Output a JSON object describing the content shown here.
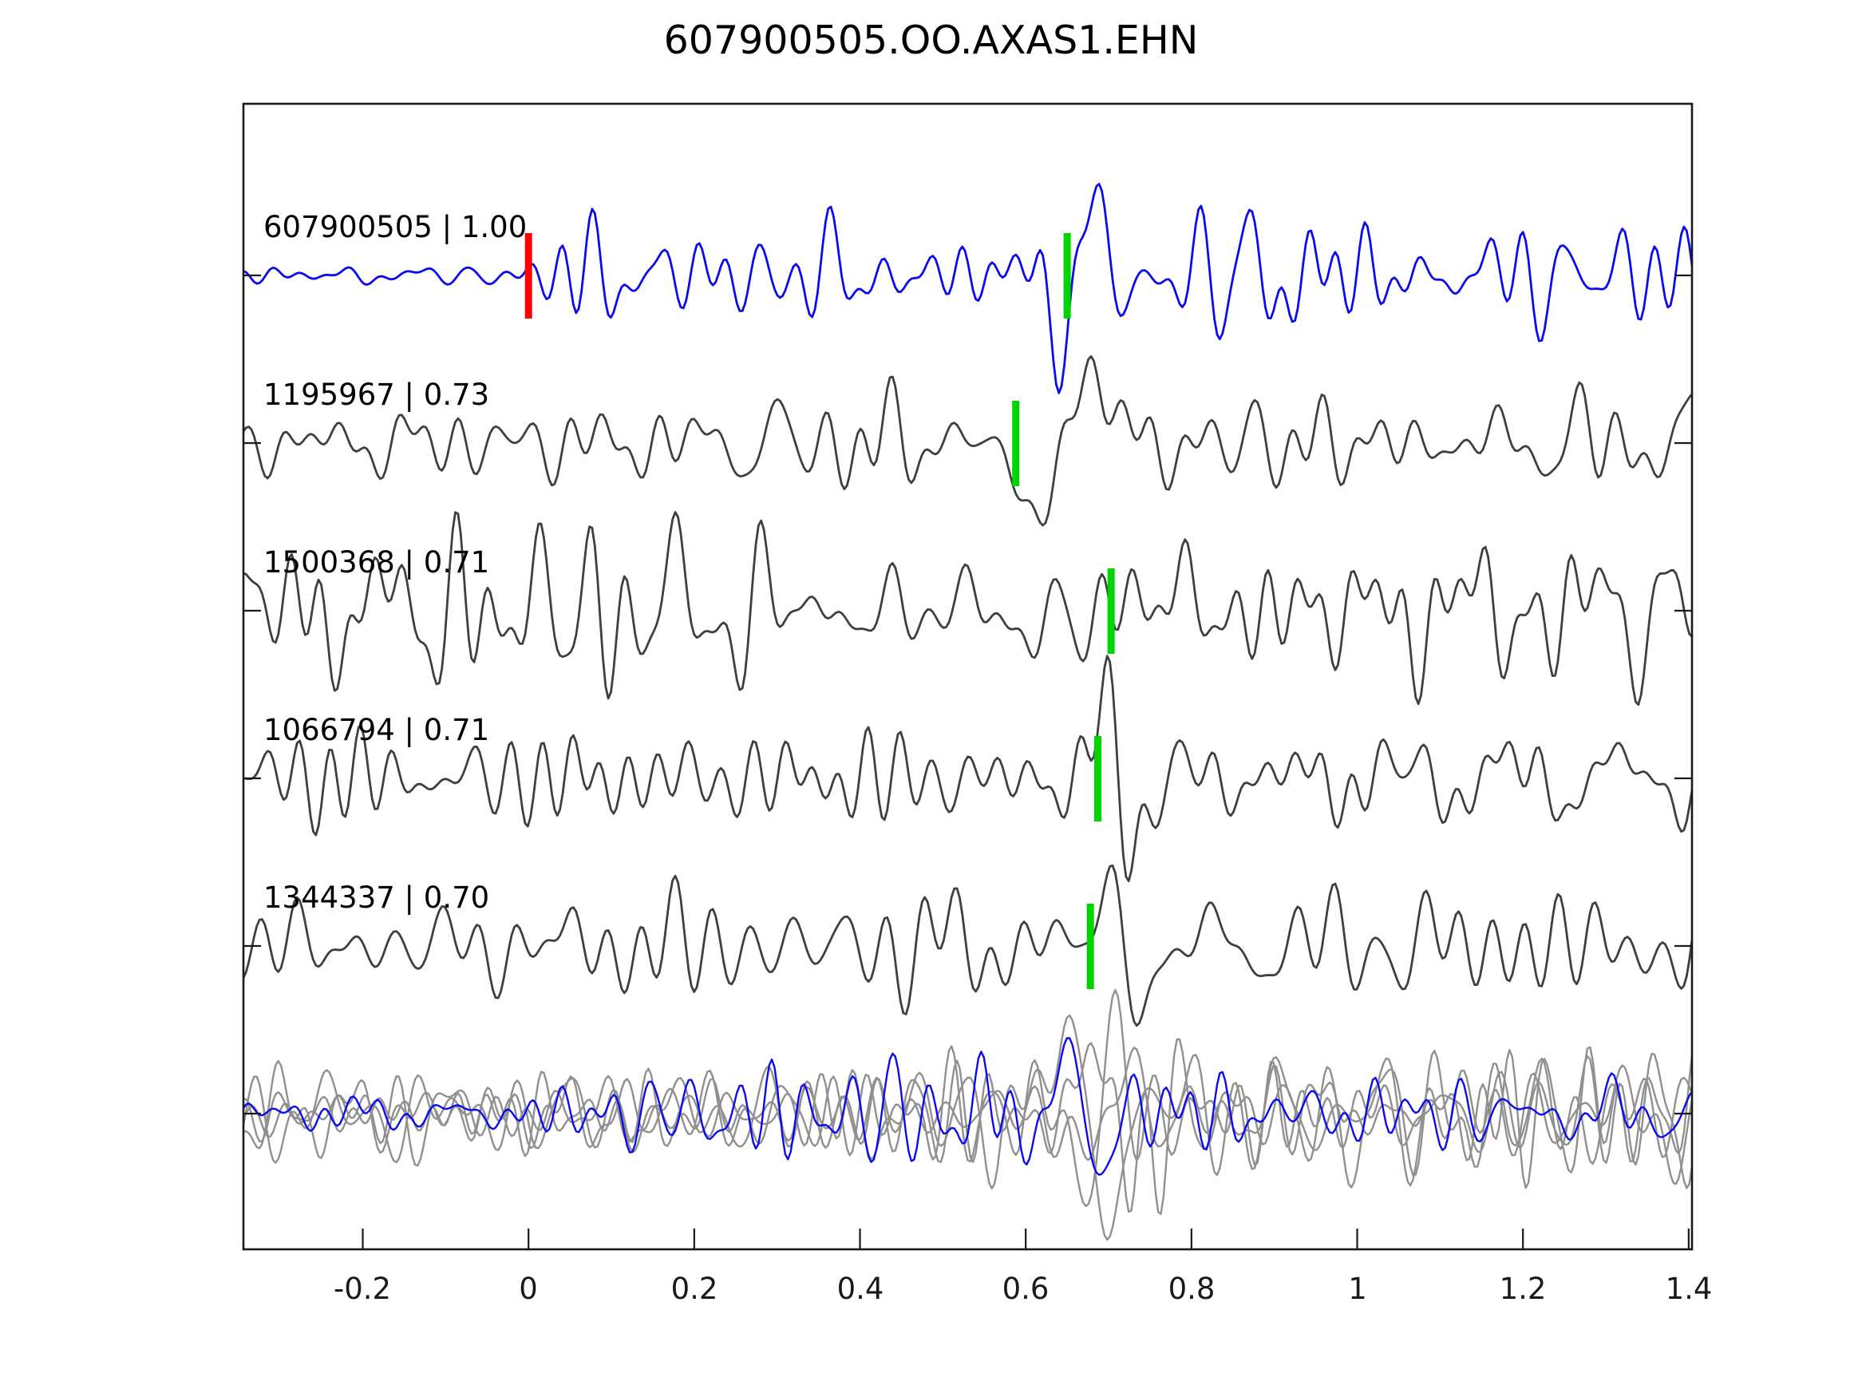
{
  "title": "607900505.OO.AXAS1.EHN",
  "colors": {
    "reference_trace": "#0b0bee",
    "match_trace": "#3f3f3f",
    "overlay_gray": "#909090",
    "pick_green": "#00d400",
    "pick_red": "#ff0000",
    "axis": "#1a1a1a",
    "background": "#ffffff"
  },
  "axes": {
    "xlim": [
      -0.344,
      1.404
    ],
    "xticks": [
      -0.2,
      0,
      0.2,
      0.4,
      0.6,
      0.8,
      1.0,
      1.2,
      1.4
    ],
    "xtick_labels": [
      "-0.2",
      "0",
      "0.2",
      "0.4",
      "0.6",
      "0.8",
      "1",
      "1.2",
      "1.4"
    ],
    "yticks_at_trace_centers": true,
    "grid": false
  },
  "chart_data": {
    "type": "line",
    "subtype": "seismic-waveform-correlation-stack",
    "title": "607900505.OO.AXAS1.EHN",
    "xlabel": "",
    "ylabel": "",
    "xlim": [
      -0.344,
      1.404
    ],
    "xticks": [
      -0.2,
      0,
      0.2,
      0.4,
      0.6,
      0.8,
      1.0,
      1.2,
      1.4
    ],
    "legend": "none",
    "n_rows": 6,
    "rows": [
      {
        "label": "607900505 | 1.00",
        "event_id": "607900505",
        "correlation": 1.0,
        "role": "reference",
        "color": "#0b0bee",
        "picks": [
          {
            "kind": "origin-pick",
            "color": "#ff0000",
            "x": 0.0
          },
          {
            "kind": "phase-pick",
            "color": "#00d400",
            "x": 0.65
          }
        ],
        "wave": {
          "seed": 7,
          "pre": 15,
          "post": 58,
          "t0": 0.025,
          "w0": 0.04,
          "burst_t": 0.93,
          "burst_h": 22,
          "burst_w": 0.28,
          "wt": 0.666,
          "wp": 0.084,
          "wa": 128,
          "ww": 0.05
        }
      },
      {
        "label": "1195967 | 0.73",
        "event_id": "1195967",
        "correlation": 0.73,
        "role": "match",
        "color": "#3f3f3f",
        "picks": [
          {
            "kind": "phase-pick",
            "color": "#00d400",
            "x": 0.588
          }
        ],
        "wave": {
          "seed": 13,
          "pre": 52,
          "post": 60,
          "t0": 0.55,
          "w0": 0.12,
          "wt": 0.646,
          "wp": 0.18,
          "wa": 112,
          "ww": 0.075
        }
      },
      {
        "label": "1500368 | 0.71",
        "event_id": "1500368",
        "correlation": 0.71,
        "role": "match",
        "color": "#3f3f3f",
        "picks": [
          {
            "kind": "phase-pick",
            "color": "#00d400",
            "x": 0.703
          }
        ],
        "wave": {
          "seed": 23,
          "pre": 88,
          "post": 82,
          "t0": 0.0,
          "w0": 1.0,
          "wt": 0.69,
          "wp": 0.17,
          "wa": 105,
          "ww": 0.045
        }
      },
      {
        "label": "1066794 | 0.71",
        "event_id": "1066794",
        "correlation": 0.71,
        "role": "match",
        "color": "#3f3f3f",
        "picks": [
          {
            "kind": "phase-pick",
            "color": "#00d400",
            "x": 0.687
          }
        ],
        "wave": {
          "seed": 31,
          "pre": 52,
          "post": 72,
          "t0": 0.6,
          "w0": 0.1,
          "wt": 0.715,
          "wp": 0.1,
          "wa": -118,
          "ww": 0.05
        }
      },
      {
        "label": "1344337 | 0.70",
        "event_id": "1344337",
        "correlation": 0.7,
        "role": "match",
        "color": "#3f3f3f",
        "picks": [
          {
            "kind": "phase-pick",
            "color": "#00d400",
            "x": 0.678
          }
        ],
        "wave": {
          "seed": 47,
          "pre": 62,
          "post": 78,
          "t0": 0.6,
          "w0": 0.1,
          "wt": 0.72,
          "wp": 0.11,
          "wa": -102,
          "ww": 0.05
        }
      },
      {
        "label": "",
        "role": "overlay-all-traces",
        "picks": [],
        "members": [
          {
            "color": "#909090",
            "wave": {
              "seed": 101,
              "pre": 58,
              "post": 72,
              "t0": 0.55,
              "w0": 0.12,
              "wt": 0.7,
              "wp": 0.12,
              "wa": 92,
              "ww": 0.06
            }
          },
          {
            "color": "#909090",
            "wave": {
              "seed": 112,
              "pre": 52,
              "post": 68,
              "t0": 0.55,
              "w0": 0.12,
              "wt": 0.67,
              "wp": 0.15,
              "wa": -108,
              "ww": 0.07
            }
          },
          {
            "color": "#909090",
            "wave": {
              "seed": 123,
              "pre": 62,
              "post": 78,
              "t0": 0.55,
              "w0": 0.12,
              "wt": 0.69,
              "wp": 0.1,
              "wa": 100,
              "ww": 0.05
            }
          },
          {
            "color": "#909090",
            "wave": {
              "seed": 134,
              "pre": 48,
              "post": 80,
              "t0": 0.55,
              "w0": 0.12,
              "wt": 0.71,
              "wp": 0.13,
              "wa": -95,
              "ww": 0.06
            }
          },
          {
            "color": "#0b0bee",
            "wave": {
              "seed": 145,
              "pre": 26,
              "post": 52,
              "t0": 0.12,
              "w0": 0.15,
              "wt": 0.666,
              "wp": 0.09,
              "wa": -95,
              "ww": 0.05
            }
          }
        ]
      }
    ]
  }
}
